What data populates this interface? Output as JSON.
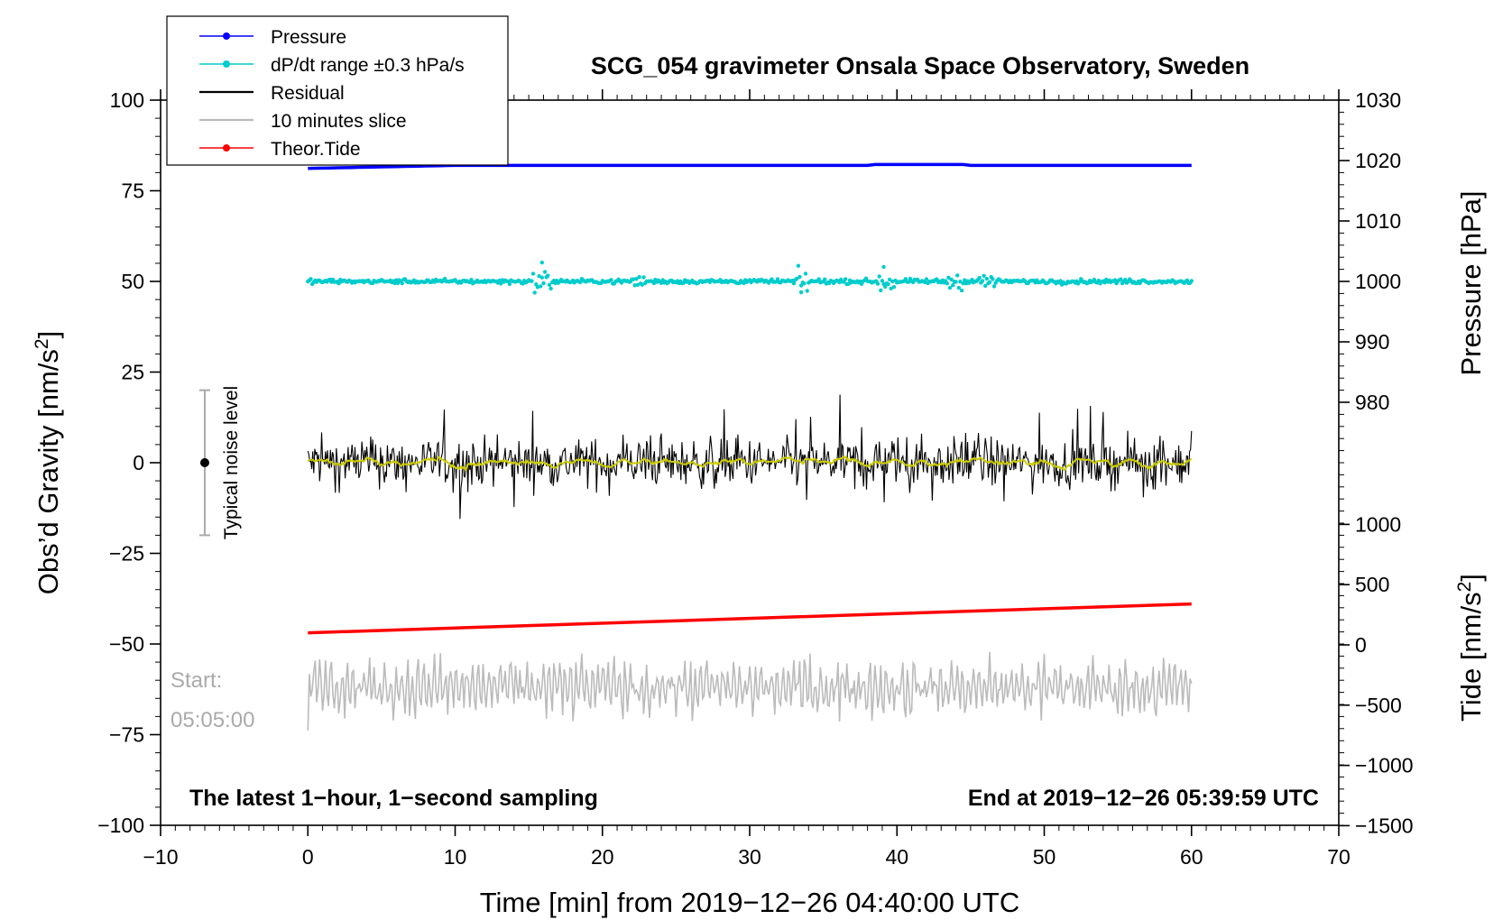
{
  "chart_data": {
    "type": "line",
    "title": "SCG_054 gravimeter Onsala Space Observatory, Sweden",
    "xlabel": "Time [min] from 2019−12−26 04:40:00 UTC",
    "xlim": [
      -10,
      70
    ],
    "x_ticks": [
      -10,
      0,
      10,
      20,
      30,
      40,
      50,
      60,
      70
    ],
    "x_tick_labels": [
      "−10",
      "0",
      "10",
      "20",
      "30",
      "40",
      "50",
      "60",
      "70"
    ],
    "left_axis": {
      "label_main": "Obs’d Gravity [nm/s",
      "label_sup": "2",
      "label_end": "]",
      "ylim": [
        -100,
        100
      ],
      "ticks": [
        100,
        75,
        50,
        25,
        0,
        -25,
        -50,
        -75,
        -100
      ],
      "tick_labels": [
        "100",
        "75",
        "50",
        "25",
        "0",
        "−25",
        "−50",
        "−75",
        "−100"
      ]
    },
    "pressure_axis": {
      "label": "Pressure [hPa]",
      "ticks": [
        1030,
        1020,
        1010,
        1000,
        990,
        980
      ],
      "tick_labels": [
        "1030",
        "1020",
        "1010",
        "1000",
        "990",
        "980"
      ]
    },
    "tide_axis": {
      "label_main": "Tide [nm/s",
      "label_sup": "2",
      "label_end": "]",
      "ticks": [
        1000,
        500,
        0,
        -500,
        -1000,
        -1500
      ],
      "tick_labels": [
        "1000",
        "500",
        "0",
        "−500",
        "−1000",
        "−1500"
      ]
    },
    "series": [
      {
        "name": "Pressure",
        "color": "#0000ff",
        "axis": "pressure",
        "start": 1018.7,
        "end": 1019.2
      },
      {
        "name": "dP/dt range ±0.3 hPa/s",
        "color": "#00cccc",
        "axis": "left",
        "center": 50
      },
      {
        "name": "Residual",
        "color": "#000000",
        "axis": "left",
        "center": 0,
        "amplitude": 8
      },
      {
        "name": "10 minutes slice",
        "color": "#bbbbbb",
        "axis": "left",
        "center": -62
      },
      {
        "name": "Theor.Tide",
        "color": "#ff0000",
        "axis": "tide",
        "start": 100,
        "end": 340
      }
    ],
    "smoothed_residual_color": "#cccc00",
    "noise_bar": {
      "label": "Typical noise level",
      "x": -7,
      "center": 0,
      "half_range": 20
    },
    "annotations": {
      "start_label": "Start:",
      "start_time": "05:05:00",
      "bottom_left": "The latest 1−hour, 1−second sampling",
      "bottom_right": "End at 2019−12−26 05:39:59 UTC"
    }
  }
}
